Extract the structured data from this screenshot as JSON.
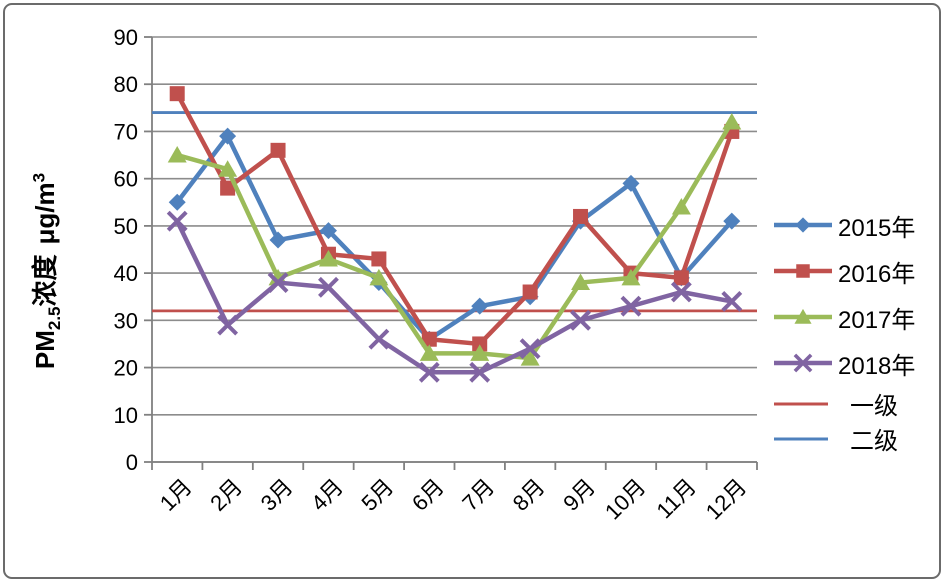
{
  "chart_data": {
    "type": "line",
    "title": "",
    "ylabel": "PM2.5浓度 μg/m3",
    "ylabel_parts": {
      "prefix": "PM",
      "sub": "2.5",
      "mid": "浓度",
      "unit": "μg/m",
      "sup": "3"
    },
    "categories": [
      "1月",
      "2月",
      "3月",
      "4月",
      "5月",
      "6月",
      "7月",
      "8月",
      "9月",
      "10月",
      "11月",
      "12月"
    ],
    "series": [
      {
        "name": "2015年",
        "marker": "diamond",
        "color": "#4F81BD",
        "values": [
          55,
          69,
          47,
          49,
          38,
          26,
          33,
          35,
          51,
          59,
          39,
          51
        ]
      },
      {
        "name": "2016年",
        "marker": "square",
        "color": "#C0504D",
        "values": [
          78,
          58,
          66,
          44,
          43,
          26,
          25,
          36,
          52,
          40,
          39,
          70
        ]
      },
      {
        "name": "2017年",
        "marker": "triangle",
        "color": "#9BBB59",
        "values": [
          65,
          62,
          39,
          43,
          39,
          23,
          23,
          22,
          38,
          39,
          54,
          72
        ]
      },
      {
        "name": "2018年",
        "marker": "x",
        "color": "#8064A2",
        "values": [
          51,
          29,
          38,
          37,
          26,
          19,
          19,
          24,
          30,
          33,
          36,
          34
        ]
      }
    ],
    "reference_lines": [
      {
        "name": "一级",
        "value": 32,
        "color": "#C0504D"
      },
      {
        "name": "二级",
        "value": 74,
        "color": "#4F81BD"
      }
    ],
    "ylim": [
      0,
      90
    ],
    "ytick_step": 10,
    "grid": true,
    "legend_position": "right",
    "colors": {
      "gridline": "#8C8C8C",
      "axis": "#808080",
      "text": "#000000"
    }
  }
}
